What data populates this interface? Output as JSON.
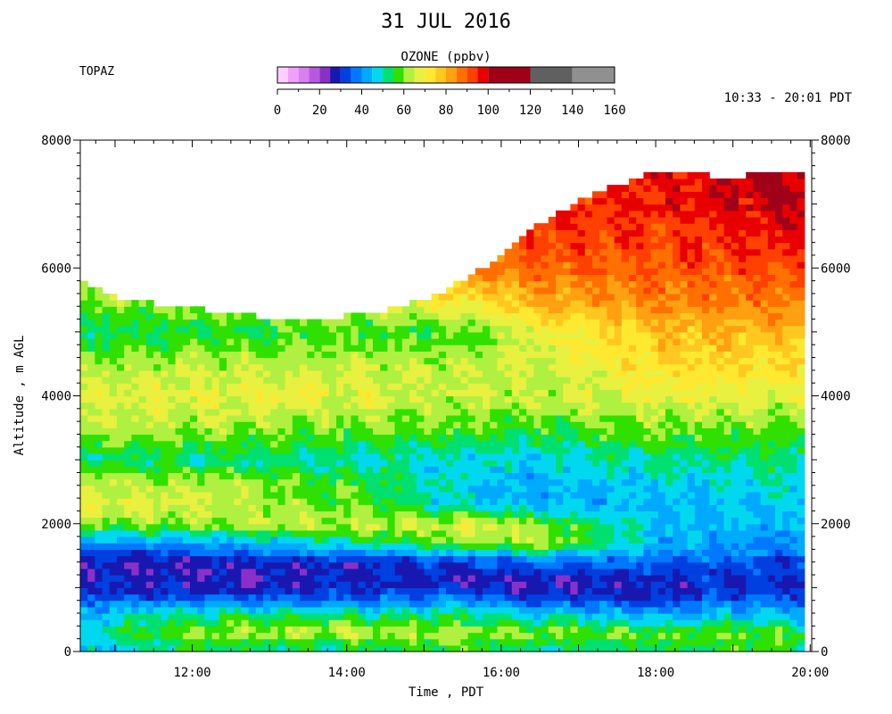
{
  "chart_data": {
    "type": "heatmap",
    "title": "31 JUL 2016",
    "site": "TOPAZ",
    "time_range": "10:33 - 20:01 PDT",
    "xlabel": "Time , PDT",
    "ylabel": "Altitude , m AGL",
    "xlim_hours": [
      10.55,
      20.02
    ],
    "ylim": [
      0,
      8000
    ],
    "x_tick_labels": [
      "12:00",
      "14:00",
      "16:00",
      "18:00",
      "20:00"
    ],
    "x_tick_hours": [
      12,
      14,
      16,
      18,
      20
    ],
    "y_ticks": [
      0,
      2000,
      4000,
      6000,
      8000
    ],
    "grid": false,
    "colorbar": {
      "title": "OZONE (ppbv)",
      "tick_labels": [
        "0",
        "20",
        "40",
        "60",
        "80",
        "100",
        "120",
        "140",
        "160"
      ],
      "tick_values": [
        0,
        20,
        40,
        60,
        80,
        100,
        120,
        140,
        160
      ],
      "levels": [
        0,
        5,
        10,
        15,
        20,
        25,
        30,
        35,
        40,
        45,
        50,
        55,
        60,
        65,
        70,
        75,
        80,
        85,
        90,
        95,
        100,
        120,
        140,
        160
      ],
      "colors": [
        "#ffd0ff",
        "#f0a0f8",
        "#d880f0",
        "#b858e0",
        "#8a30c8",
        "#1818b0",
        "#0040e0",
        "#0078ff",
        "#00aaff",
        "#00d8f0",
        "#00e070",
        "#30e000",
        "#b0f040",
        "#e8f040",
        "#ffe830",
        "#ffc820",
        "#ffa010",
        "#ff7000",
        "#ff4000",
        "#e80000",
        "#a00018",
        "#606060",
        "#909090",
        "#c0c0c0"
      ]
    },
    "profile_anchors": {
      "altitudes_m": [
        100,
        300,
        600,
        900,
        1100,
        1400,
        1700,
        2000,
        2300,
        2600,
        3000,
        3500,
        4000,
        4500,
        5000,
        5500,
        6000,
        6500,
        7000,
        7500
      ],
      "times_h": [
        10.6,
        12.0,
        14.0,
        15.5,
        16.5,
        18.0,
        19.5,
        20.0
      ],
      "ozone_ppbv": [
        [
          45,
          48,
          46,
          32,
          28,
          28,
          38,
          60,
          68,
          66,
          52,
          63,
          67,
          62,
          53,
          61,
          65,
          68,
          70,
          70
        ],
        [
          54,
          63,
          50,
          30,
          26,
          28,
          40,
          62,
          66,
          64,
          52,
          62,
          68,
          63,
          54,
          64,
          68,
          70,
          72,
          72
        ],
        [
          52,
          66,
          50,
          32,
          28,
          30,
          50,
          64,
          58,
          58,
          50,
          60,
          68,
          64,
          57,
          66,
          72,
          75,
          76,
          76
        ],
        [
          58,
          63,
          52,
          34,
          26,
          32,
          60,
          67,
          48,
          46,
          48,
          58,
          65,
          63,
          57,
          73,
          86,
          92,
          92,
          92
        ],
        [
          52,
          60,
          46,
          28,
          25,
          36,
          64,
          60,
          44,
          42,
          47,
          56,
          64,
          65,
          68,
          80,
          88,
          94,
          95,
          95
        ],
        [
          55,
          58,
          42,
          30,
          28,
          36,
          44,
          46,
          44,
          46,
          52,
          60,
          68,
          74,
          78,
          85,
          90,
          93,
          95,
          96
        ],
        [
          57,
          60,
          45,
          32,
          30,
          34,
          40,
          44,
          46,
          48,
          52,
          60,
          67,
          74,
          80,
          86,
          92,
          96,
          100,
          104
        ],
        [
          50,
          52,
          42,
          33,
          30,
          32,
          38,
          42,
          44,
          48,
          52,
          60,
          66,
          73,
          80,
          86,
          93,
          96,
          100,
          104
        ]
      ]
    },
    "top_envelope": {
      "times_h": [
        10.6,
        11.0,
        11.5,
        12.0,
        12.5,
        13.0,
        13.5,
        14.0,
        14.5,
        15.0,
        15.5,
        16.0,
        16.5,
        17.0,
        17.5,
        18.0,
        18.5,
        19.0,
        19.5,
        19.9
      ],
      "altitudes_m": [
        5780,
        5550,
        5450,
        5380,
        5300,
        5220,
        5200,
        5250,
        5350,
        5500,
        5800,
        6200,
        6700,
        7050,
        7300,
        7500,
        7480,
        7400,
        7520,
        7480
      ]
    }
  }
}
